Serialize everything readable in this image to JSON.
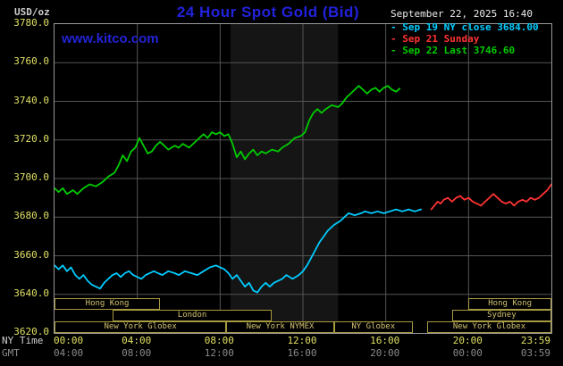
{
  "header": {
    "units_label": "USD/oz",
    "title": "24 Hour Spot Gold (Bid)",
    "timestamp": "September 22, 2025 16:40",
    "watermark": "www.kitco.com"
  },
  "legend": {
    "items": [
      {
        "label": "Sep 19 NY close 3684.00",
        "color": "#00ccff"
      },
      {
        "label": "Sep 21 Sunday",
        "color": "#ff3333"
      },
      {
        "label": "Sep 22 Last 3746.60",
        "color": "#00cc00"
      }
    ]
  },
  "colors": {
    "bg": "#000000",
    "title": "#2222dd",
    "watermark": "#2323d7",
    "border": "#999999",
    "grid": "#555555",
    "band": "#151515",
    "tick": "#e0e065",
    "gmt": "#8a8a8a",
    "session": "#d2c270",
    "session_border": "#a89a40"
  },
  "axes": {
    "y_ticks": [
      "3780.0",
      "3760.0",
      "3740.0",
      "3720.0",
      "3700.0",
      "3680.0",
      "3660.0",
      "3640.0",
      "3620.0"
    ],
    "x_ny": {
      "label": "NY Time",
      "ticks": [
        {
          "h": 0,
          "t": "00:00"
        },
        {
          "h": 4,
          "t": "04:00"
        },
        {
          "h": 8,
          "t": "08:00"
        },
        {
          "h": 12,
          "t": "12:00"
        },
        {
          "h": 16,
          "t": "16:00"
        },
        {
          "h": 20,
          "t": "20:00"
        },
        {
          "h": 24,
          "t": "23:59"
        }
      ]
    },
    "x_gmt": {
      "label": "GMT",
      "ticks": [
        {
          "h": 0,
          "t": "04:00"
        },
        {
          "h": 4,
          "t": "08:00"
        },
        {
          "h": 8,
          "t": "12:00"
        },
        {
          "h": 12,
          "t": "16:00"
        },
        {
          "h": 16,
          "t": "20:00"
        },
        {
          "h": 20,
          "t": "00:00"
        },
        {
          "h": 24,
          "t": "03:59"
        }
      ]
    }
  },
  "sessions": [
    {
      "row": 1,
      "start": 0,
      "end": 5.1,
      "label": "Hong Kong"
    },
    {
      "row": 1,
      "start": 20,
      "end": 24,
      "label": "Hong Kong"
    },
    {
      "row": 2,
      "start": 2.8,
      "end": 10.5,
      "label": "London"
    },
    {
      "row": 2,
      "start": 19.2,
      "end": 24,
      "label": "Sydney"
    },
    {
      "row": 3,
      "start": 0,
      "end": 8.3,
      "label": "New York Globex"
    },
    {
      "row": 3,
      "start": 8.3,
      "end": 13.5,
      "label": "New York NYMEX"
    },
    {
      "row": 3,
      "start": 13.5,
      "end": 17.3,
      "label": "NY Globex"
    },
    {
      "row": 3,
      "start": 18,
      "end": 24,
      "label": "New York Globex"
    }
  ],
  "chart_data": {
    "type": "line",
    "title": "24 Hour Spot Gold (Bid)",
    "xlabel": "NY Time (hours 00:00-23:59)",
    "ylabel": "USD/oz",
    "xlim": [
      0,
      24
    ],
    "ylim": [
      3620,
      3780
    ],
    "y_gridstep": 20,
    "x_gridstep_hours": 4,
    "grid": true,
    "legend_position": "top-right",
    "highlight_band_hours": [
      8.5,
      13.7
    ],
    "prev_close": 3684.0,
    "last": 3746.6,
    "series": [
      {
        "name": "Sep 19 NY close 3684.00",
        "color": "#00ccff",
        "points": [
          [
            0,
            3655
          ],
          [
            0.2,
            3653
          ],
          [
            0.4,
            3655
          ],
          [
            0.6,
            3652
          ],
          [
            0.8,
            3654
          ],
          [
            1.0,
            3650
          ],
          [
            1.2,
            3648
          ],
          [
            1.4,
            3650
          ],
          [
            1.6,
            3647
          ],
          [
            1.8,
            3645
          ],
          [
            2.0,
            3644
          ],
          [
            2.2,
            3643
          ],
          [
            2.4,
            3646
          ],
          [
            2.6,
            3648
          ],
          [
            2.8,
            3650
          ],
          [
            3.0,
            3651
          ],
          [
            3.2,
            3649
          ],
          [
            3.4,
            3651
          ],
          [
            3.6,
            3652
          ],
          [
            3.8,
            3650
          ],
          [
            4.0,
            3649
          ],
          [
            4.2,
            3648
          ],
          [
            4.4,
            3650
          ],
          [
            4.6,
            3651
          ],
          [
            4.8,
            3652
          ],
          [
            5.0,
            3651
          ],
          [
            5.2,
            3650
          ],
          [
            5.5,
            3652
          ],
          [
            5.8,
            3651
          ],
          [
            6.0,
            3650
          ],
          [
            6.3,
            3652
          ],
          [
            6.6,
            3651
          ],
          [
            6.9,
            3650
          ],
          [
            7.2,
            3652
          ],
          [
            7.5,
            3654
          ],
          [
            7.8,
            3655
          ],
          [
            8.0,
            3654
          ],
          [
            8.2,
            3653
          ],
          [
            8.4,
            3651
          ],
          [
            8.6,
            3648
          ],
          [
            8.8,
            3650
          ],
          [
            9.0,
            3647
          ],
          [
            9.2,
            3644
          ],
          [
            9.4,
            3646
          ],
          [
            9.6,
            3642
          ],
          [
            9.8,
            3641
          ],
          [
            10.0,
            3644
          ],
          [
            10.2,
            3646
          ],
          [
            10.4,
            3644
          ],
          [
            10.6,
            3646
          ],
          [
            10.8,
            3647
          ],
          [
            11.0,
            3648
          ],
          [
            11.2,
            3650
          ],
          [
            11.5,
            3648
          ],
          [
            11.8,
            3650
          ],
          [
            12.0,
            3652
          ],
          [
            12.2,
            3655
          ],
          [
            12.4,
            3659
          ],
          [
            12.6,
            3663
          ],
          [
            12.8,
            3667
          ],
          [
            13.0,
            3670
          ],
          [
            13.2,
            3673
          ],
          [
            13.5,
            3676
          ],
          [
            13.8,
            3678
          ],
          [
            14.0,
            3680
          ],
          [
            14.2,
            3682
          ],
          [
            14.5,
            3681
          ],
          [
            14.8,
            3682
          ],
          [
            15.0,
            3683
          ],
          [
            15.3,
            3682
          ],
          [
            15.6,
            3683
          ],
          [
            15.9,
            3682
          ],
          [
            16.2,
            3683
          ],
          [
            16.5,
            3684
          ],
          [
            16.8,
            3683
          ],
          [
            17.1,
            3684
          ],
          [
            17.4,
            3683
          ],
          [
            17.7,
            3684
          ]
        ]
      },
      {
        "name": "Sep 21 Sunday",
        "color": "#ff3333",
        "points": [
          [
            18.2,
            3684
          ],
          [
            18.35,
            3686
          ],
          [
            18.5,
            3688
          ],
          [
            18.65,
            3687
          ],
          [
            18.8,
            3689
          ],
          [
            19.0,
            3690
          ],
          [
            19.2,
            3688
          ],
          [
            19.4,
            3690
          ],
          [
            19.6,
            3691
          ],
          [
            19.8,
            3689
          ],
          [
            20.0,
            3690
          ],
          [
            20.2,
            3688
          ],
          [
            20.4,
            3687
          ],
          [
            20.6,
            3686
          ],
          [
            20.8,
            3688
          ],
          [
            21.0,
            3690
          ],
          [
            21.2,
            3692
          ],
          [
            21.4,
            3690
          ],
          [
            21.6,
            3688
          ],
          [
            21.8,
            3687
          ],
          [
            22.0,
            3688
          ],
          [
            22.2,
            3686
          ],
          [
            22.4,
            3688
          ],
          [
            22.6,
            3689
          ],
          [
            22.8,
            3688
          ],
          [
            23.0,
            3690
          ],
          [
            23.2,
            3689
          ],
          [
            23.4,
            3690
          ],
          [
            23.6,
            3692
          ],
          [
            23.8,
            3694
          ],
          [
            24.0,
            3697
          ]
        ]
      },
      {
        "name": "Sep 22 Last 3746.60",
        "color": "#00cc00",
        "points": [
          [
            0,
            3695
          ],
          [
            0.2,
            3693
          ],
          [
            0.4,
            3695
          ],
          [
            0.6,
            3692
          ],
          [
            0.9,
            3694
          ],
          [
            1.1,
            3692
          ],
          [
            1.4,
            3695
          ],
          [
            1.7,
            3697
          ],
          [
            2.0,
            3696
          ],
          [
            2.3,
            3698
          ],
          [
            2.6,
            3701
          ],
          [
            2.9,
            3703
          ],
          [
            3.1,
            3707
          ],
          [
            3.3,
            3712
          ],
          [
            3.5,
            3709
          ],
          [
            3.7,
            3714
          ],
          [
            3.9,
            3716
          ],
          [
            4.1,
            3721
          ],
          [
            4.3,
            3717
          ],
          [
            4.5,
            3713
          ],
          [
            4.7,
            3714
          ],
          [
            4.9,
            3717
          ],
          [
            5.1,
            3719
          ],
          [
            5.3,
            3717
          ],
          [
            5.5,
            3715
          ],
          [
            5.8,
            3717
          ],
          [
            6.0,
            3716
          ],
          [
            6.2,
            3718
          ],
          [
            6.5,
            3716
          ],
          [
            6.8,
            3719
          ],
          [
            7.0,
            3721
          ],
          [
            7.2,
            3723
          ],
          [
            7.4,
            3721
          ],
          [
            7.6,
            3724
          ],
          [
            7.8,
            3723
          ],
          [
            8.0,
            3724
          ],
          [
            8.2,
            3722
          ],
          [
            8.4,
            3723
          ],
          [
            8.6,
            3718
          ],
          [
            8.8,
            3711
          ],
          [
            9.0,
            3714
          ],
          [
            9.2,
            3710
          ],
          [
            9.4,
            3713
          ],
          [
            9.6,
            3715
          ],
          [
            9.8,
            3712
          ],
          [
            10.0,
            3714
          ],
          [
            10.2,
            3713
          ],
          [
            10.5,
            3715
          ],
          [
            10.8,
            3714
          ],
          [
            11.0,
            3716
          ],
          [
            11.3,
            3718
          ],
          [
            11.6,
            3721
          ],
          [
            11.9,
            3722
          ],
          [
            12.1,
            3724
          ],
          [
            12.3,
            3730
          ],
          [
            12.5,
            3734
          ],
          [
            12.7,
            3736
          ],
          [
            12.9,
            3734
          ],
          [
            13.1,
            3736
          ],
          [
            13.4,
            3738
          ],
          [
            13.7,
            3737
          ],
          [
            13.9,
            3739
          ],
          [
            14.1,
            3742
          ],
          [
            14.3,
            3744
          ],
          [
            14.5,
            3746
          ],
          [
            14.7,
            3748
          ],
          [
            14.9,
            3746
          ],
          [
            15.1,
            3744
          ],
          [
            15.3,
            3746
          ],
          [
            15.5,
            3747
          ],
          [
            15.7,
            3745
          ],
          [
            15.9,
            3747
          ],
          [
            16.1,
            3748
          ],
          [
            16.3,
            3746
          ],
          [
            16.5,
            3745
          ],
          [
            16.67,
            3746.6
          ]
        ]
      }
    ]
  }
}
